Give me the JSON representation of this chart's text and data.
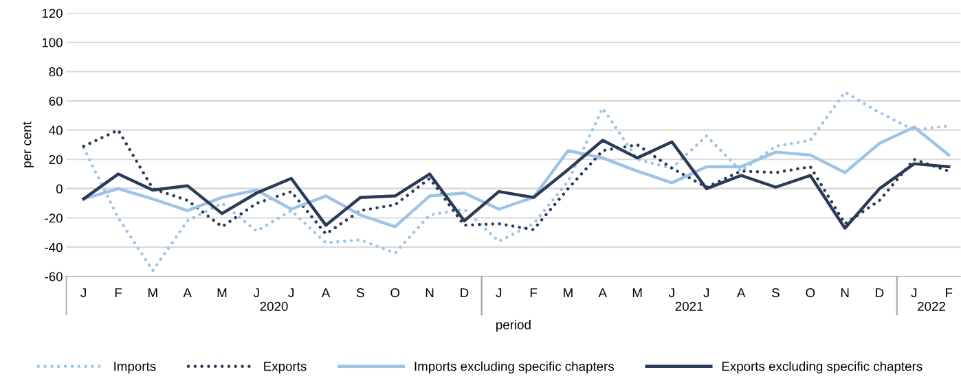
{
  "chart_data": {
    "type": "line",
    "xlabel": "period",
    "ylabel": "per cent",
    "categories": [
      "J",
      "F",
      "M",
      "A",
      "M",
      "J",
      "J",
      "A",
      "S",
      "O",
      "N",
      "D",
      "J",
      "F",
      "M",
      "A",
      "M",
      "J",
      "J",
      "A",
      "S",
      "O",
      "N",
      "D",
      "J",
      "F"
    ],
    "annotations": [
      "2020",
      "2021",
      "2022"
    ],
    "ylim": [
      -60,
      120
    ],
    "yticks": [
      -60,
      -40,
      -20,
      0,
      20,
      40,
      60,
      80,
      100,
      120
    ],
    "grid": "y",
    "legend": "bottom",
    "marker": "none",
    "ref_lines": [
      {
        "axis": "y",
        "value": 0,
        "color": "#a6a1a6"
      }
    ],
    "series": [
      {
        "name": "Imports",
        "color": "#9dc3e6",
        "line_style": "dotted",
        "values": [
          28,
          -20,
          -56,
          -22,
          -10,
          -29,
          -15,
          -37,
          -35,
          -44,
          -18,
          -14,
          -36,
          -24,
          5,
          55,
          20,
          14,
          36,
          12,
          29,
          33,
          66,
          52,
          40,
          43
        ]
      },
      {
        "name": "Exports",
        "color": "#2b3a57",
        "line_style": "dotted",
        "values": [
          29,
          40,
          0,
          -8,
          -26,
          -10,
          -2,
          -31,
          -15,
          -11,
          7,
          -25,
          -24,
          -28,
          0,
          26,
          30,
          14,
          1,
          12,
          11,
          15,
          -24,
          -8,
          20,
          12
        ]
      },
      {
        "name": "Imports excluding specific chapters",
        "color": "#9dc3e6",
        "line_style": "solid",
        "values": [
          -7,
          0,
          -7,
          -15,
          -6,
          -1,
          -14,
          -5,
          -18,
          -26,
          -5,
          -3,
          -14,
          -6,
          26,
          21,
          12,
          4,
          15,
          15,
          25,
          23,
          11,
          31,
          42,
          23
        ]
      },
      {
        "name": "Exports excluding specific chapters",
        "color": "#2b3a57",
        "line_style": "solid",
        "values": [
          -7,
          10,
          -1,
          2,
          -17,
          -3,
          7,
          -25,
          -6,
          -5,
          10,
          -22,
          -2,
          -6,
          13,
          33,
          21,
          32,
          0,
          9,
          1,
          9,
          -27,
          0,
          17,
          15
        ]
      }
    ]
  }
}
